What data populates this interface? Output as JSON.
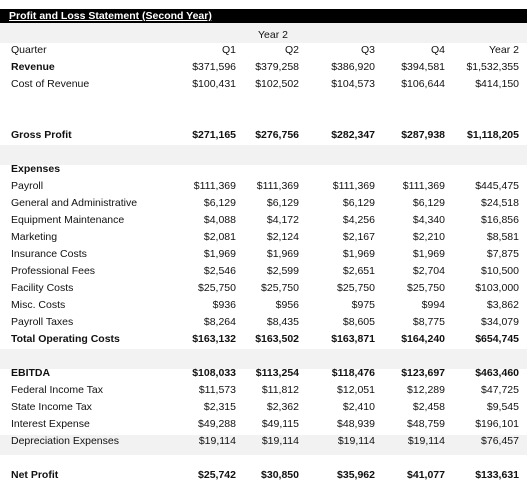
{
  "title": "Profit and Loss Statement (Second Year)",
  "year_label": "Year 2",
  "header": {
    "label": "Quarter",
    "cols": [
      "Q1",
      "Q2",
      "Q3",
      "Q4",
      "Year 2"
    ]
  },
  "revenue": {
    "label": "Revenue",
    "values": [
      "$371,596",
      "$379,258",
      "$386,920",
      "$394,581",
      "$1,532,355"
    ]
  },
  "cost_of_revenue": {
    "label": "Cost of Revenue",
    "values": [
      "$100,431",
      "$102,502",
      "$104,573",
      "$106,644",
      "$414,150"
    ]
  },
  "gross_profit": {
    "label": "Gross Profit",
    "values": [
      "$271,165",
      "$276,756",
      "$282,347",
      "$287,938",
      "$1,118,205"
    ]
  },
  "expenses_label": "Expenses",
  "expenses": [
    {
      "label": "Payroll",
      "values": [
        "$111,369",
        "$111,369",
        "$111,369",
        "$111,369",
        "$445,475"
      ]
    },
    {
      "label": "General and Administrative",
      "values": [
        "$6,129",
        "$6,129",
        "$6,129",
        "$6,129",
        "$24,518"
      ]
    },
    {
      "label": "Equipment Maintenance",
      "values": [
        "$4,088",
        "$4,172",
        "$4,256",
        "$4,340",
        "$16,856"
      ]
    },
    {
      "label": "Marketing",
      "values": [
        "$2,081",
        "$2,124",
        "$2,167",
        "$2,210",
        "$8,581"
      ]
    },
    {
      "label": "Insurance Costs",
      "values": [
        "$1,969",
        "$1,969",
        "$1,969",
        "$1,969",
        "$7,875"
      ]
    },
    {
      "label": "Professional Fees",
      "values": [
        "$2,546",
        "$2,599",
        "$2,651",
        "$2,704",
        "$10,500"
      ]
    },
    {
      "label": "Facility Costs",
      "values": [
        "$25,750",
        "$25,750",
        "$25,750",
        "$25,750",
        "$103,000"
      ]
    },
    {
      "label": "Misc. Costs",
      "values": [
        "$936",
        "$956",
        "$975",
        "$994",
        "$3,862"
      ]
    },
    {
      "label": "Payroll Taxes",
      "values": [
        "$8,264",
        "$8,435",
        "$8,605",
        "$8,775",
        "$34,079"
      ]
    }
  ],
  "total_operating": {
    "label": "Total Operating Costs",
    "values": [
      "$163,132",
      "$163,502",
      "$163,871",
      "$164,240",
      "$654,745"
    ]
  },
  "ebitda": {
    "label": "EBITDA",
    "values": [
      "$108,033",
      "$113,254",
      "$118,476",
      "$123,697",
      "$463,460"
    ]
  },
  "below_ebitda": [
    {
      "label": "Federal Income Tax",
      "values": [
        "$11,573",
        "$11,812",
        "$12,051",
        "$12,289",
        "$47,725"
      ]
    },
    {
      "label": "State Income Tax",
      "values": [
        "$2,315",
        "$2,362",
        "$2,410",
        "$2,458",
        "$9,545"
      ]
    },
    {
      "label": "Interest Expense",
      "values": [
        "$49,288",
        "$49,115",
        "$48,939",
        "$48,759",
        "$196,101"
      ]
    },
    {
      "label": "Depreciation Expenses",
      "values": [
        "$19,114",
        "$19,114",
        "$19,114",
        "$19,114",
        "$76,457"
      ]
    }
  ],
  "net_profit": {
    "label": "Net Profit",
    "values": [
      "$25,742",
      "$30,850",
      "$35,962",
      "$41,077",
      "$133,631"
    ]
  }
}
